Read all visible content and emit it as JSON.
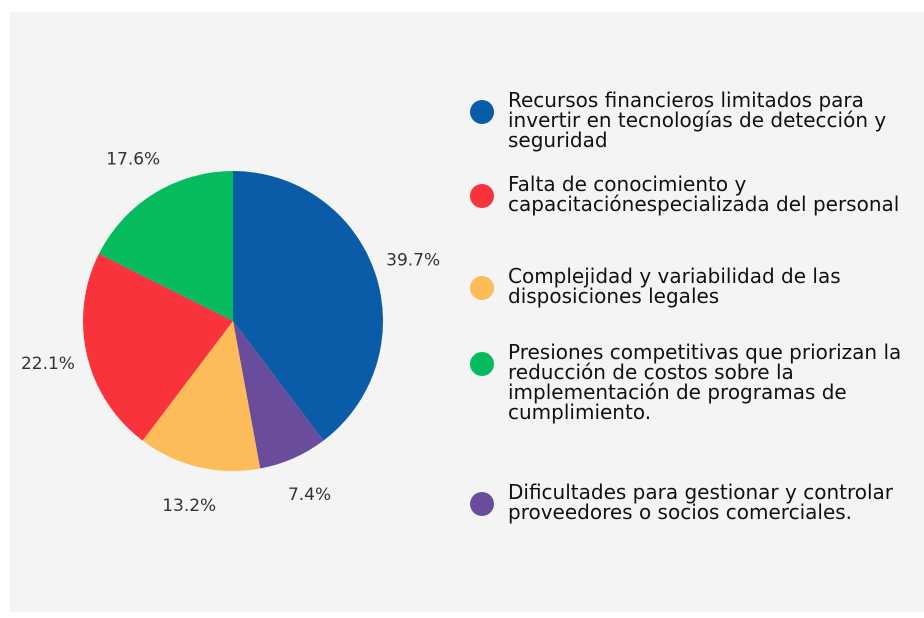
{
  "chart_data": {
    "type": "pie",
    "categories": [
      "Recursos financieros limitados para invertir en tecnologías de detección y seguridad",
      "Dificultades para gestionar y controlar proveedores o socios comerciales.",
      "Complejidad y variabilidad de las disposiciones legales",
      "Falta de conocimiento y capacitaciónespecializada del personal",
      "Presiones competitivas que priorizan la reducción de costos sobre la implementación de programas de cumplimiento."
    ],
    "values": [
      39.7,
      7.4,
      13.2,
      22.1,
      17.6
    ],
    "value_labels": [
      "39.7%",
      "7.4%",
      "13.2%",
      "22.1%",
      "17.6%"
    ],
    "colors": [
      "#0b5ca8",
      "#6a4c9c",
      "#fdbb5a",
      "#f8333b",
      "#06bb5e"
    ],
    "legend_order": [
      0,
      3,
      2,
      4,
      1
    ]
  }
}
